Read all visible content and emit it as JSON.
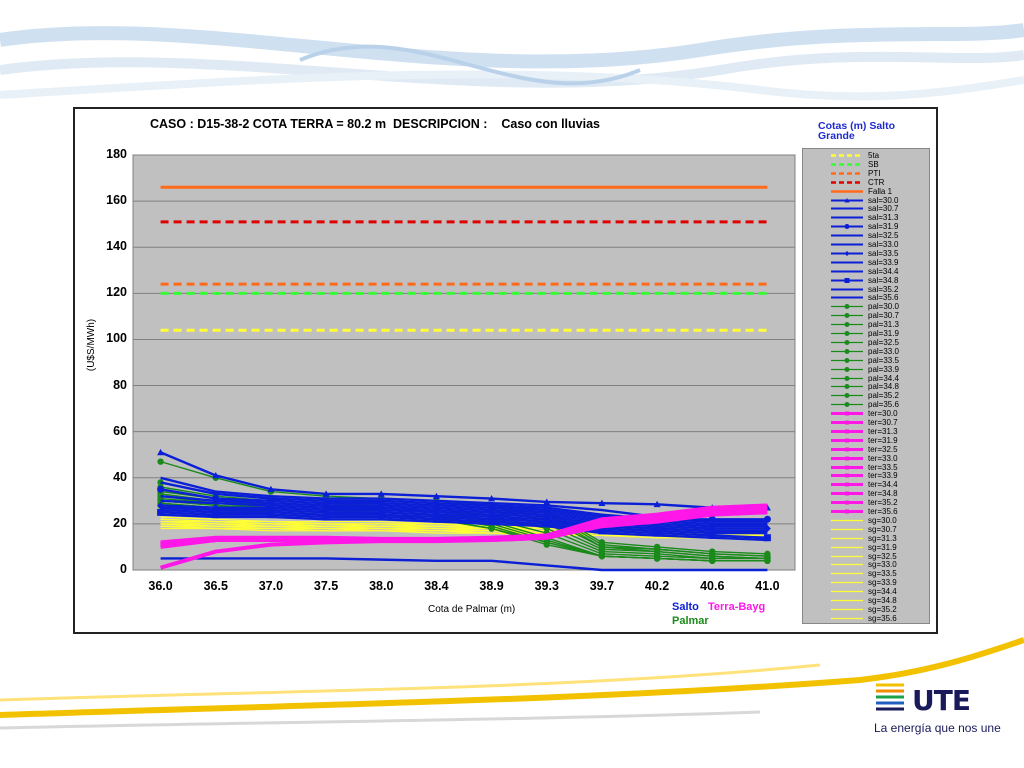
{
  "slide": {
    "logo_text": "UTE",
    "tagline": "La energía que nos une"
  },
  "chart_data": {
    "type": "line",
    "title": "CASO : D15-38-2 COTA TERRA = 80.2 m  DESCRIPCION :    Caso con lluvias",
    "xlabel": "Cota de Palmar (m)",
    "ylabel": "(U$S/MWh)",
    "ylim": [
      0,
      180
    ],
    "yticks": [
      "0",
      "20",
      "40",
      "60",
      "80",
      "100",
      "120",
      "140",
      "160",
      "180"
    ],
    "categories": [
      "36.0",
      "36.5",
      "37.0",
      "37.5",
      "38.0",
      "38.4",
      "38.9",
      "39.3",
      "39.7",
      "40.2",
      "40.6",
      "41.0"
    ],
    "grid": true,
    "legend_title": "Cotas (m) Salto Grande",
    "legend_placement": "right",
    "notes": {
      "salto": "Salto",
      "terra": "Terra-Bayg",
      "palmar": "Palmar"
    },
    "colors": {
      "salto": "#0b1fd6",
      "palmar": "#1a8a1a",
      "terra": "#ff17e8",
      "sg": "#ffff33",
      "plot_bg": "#c0c0c0"
    },
    "series": [
      {
        "name": "5ta",
        "group": "ref",
        "color": "#ffff33",
        "dash": true,
        "width": 3,
        "values": [
          104,
          104,
          104,
          104,
          104,
          104,
          104,
          104,
          104,
          104,
          104,
          104
        ]
      },
      {
        "name": "SB",
        "group": "ref",
        "color": "#33ff33",
        "dash": true,
        "width": 3,
        "values": [
          120,
          120,
          120,
          120,
          120,
          120,
          120,
          120,
          120,
          120,
          120,
          120
        ]
      },
      {
        "name": "PTI",
        "group": "ref",
        "color": "#ff6a1a",
        "dash": true,
        "width": 3,
        "values": [
          124,
          124,
          124,
          124,
          124,
          124,
          124,
          124,
          124,
          124,
          124,
          124
        ]
      },
      {
        "name": "CTR",
        "group": "ref",
        "color": "#e00000",
        "dash": true,
        "width": 3,
        "values": [
          151,
          151,
          151,
          151,
          151,
          151,
          151,
          151,
          151,
          151,
          151,
          151
        ]
      },
      {
        "name": "Falla 1",
        "group": "ref",
        "color": "#ff6a1a",
        "dash": false,
        "width": 3,
        "values": [
          166,
          166,
          166,
          166,
          166,
          166,
          166,
          166,
          166,
          166,
          166,
          166
        ]
      },
      {
        "name": "sal=30.0",
        "group": "salto",
        "marker": "triangle",
        "values": [
          51,
          41,
          35,
          33,
          33,
          32,
          31,
          29.5,
          29,
          28.5,
          27,
          27
        ]
      },
      {
        "name": "sal=30.7",
        "group": "salto",
        "marker": "",
        "values": [
          40,
          34,
          32,
          31,
          31,
          30,
          29,
          28,
          26,
          23,
          21,
          21
        ]
      },
      {
        "name": "sal=31.3",
        "group": "salto",
        "marker": "",
        "values": [
          38,
          33,
          31,
          30,
          30,
          29,
          28,
          27,
          24,
          22,
          21,
          21
        ]
      },
      {
        "name": "sal=31.9",
        "group": "salto",
        "marker": "circle",
        "values": [
          35,
          31,
          30,
          29,
          29,
          28,
          27,
          26,
          23,
          22,
          22,
          22
        ]
      },
      {
        "name": "sal=32.5",
        "group": "salto",
        "marker": "",
        "values": [
          32,
          30,
          29,
          28,
          28,
          27,
          26,
          25,
          22,
          21,
          20,
          20
        ]
      },
      {
        "name": "sal=33.0",
        "group": "salto",
        "marker": "",
        "values": [
          30,
          29,
          28,
          27,
          27,
          26,
          25,
          24,
          21,
          20,
          19,
          19
        ]
      },
      {
        "name": "sal=33.5",
        "group": "salto",
        "marker": "diamond",
        "values": [
          28,
          27,
          27,
          26,
          26,
          25,
          24,
          23,
          20,
          19,
          18,
          18
        ]
      },
      {
        "name": "sal=33.9",
        "group": "salto",
        "marker": "",
        "values": [
          27,
          26,
          26,
          25,
          25,
          24,
          23,
          22,
          19,
          18,
          17,
          17
        ]
      },
      {
        "name": "sal=34.4",
        "group": "salto",
        "marker": "",
        "values": [
          26,
          25,
          25,
          24,
          24,
          23,
          22,
          21,
          18,
          17,
          16,
          16
        ]
      },
      {
        "name": "sal=34.8",
        "group": "salto",
        "marker": "square",
        "values": [
          25,
          24,
          24,
          23,
          23,
          22,
          21,
          20,
          17,
          16,
          15,
          14
        ]
      },
      {
        "name": "sal=35.2",
        "group": "salto",
        "marker": "",
        "values": [
          24,
          23,
          23,
          22,
          22,
          21,
          20,
          19,
          16,
          15,
          14,
          13
        ]
      },
      {
        "name": "sal=35.6",
        "group": "salto",
        "marker": "",
        "values": [
          5,
          5,
          5,
          5,
          4.5,
          4,
          4,
          2,
          0,
          0,
          0,
          0
        ]
      },
      {
        "name": "pal=30.0",
        "group": "palmar",
        "values": [
          47,
          40,
          34,
          32,
          31,
          30,
          28,
          26,
          12,
          10,
          8,
          7
        ]
      },
      {
        "name": "pal=30.7",
        "group": "palmar",
        "values": [
          38,
          33,
          31,
          30,
          29,
          28,
          27,
          25,
          11,
          9,
          7,
          6
        ]
      },
      {
        "name": "pal=31.3",
        "group": "palmar",
        "values": [
          36,
          32,
          30,
          29,
          28,
          27,
          26,
          24,
          10,
          9,
          7,
          6
        ]
      },
      {
        "name": "pal=31.9",
        "group": "palmar",
        "values": [
          34,
          31,
          29,
          28,
          27,
          26,
          25,
          22,
          10,
          8,
          6,
          5
        ]
      },
      {
        "name": "pal=32.5",
        "group": "palmar",
        "values": [
          33,
          30,
          28,
          27,
          26,
          26,
          24,
          20,
          9,
          8,
          6,
          5
        ]
      },
      {
        "name": "pal=33.0",
        "group": "palmar",
        "values": [
          32,
          29,
          28,
          27,
          26,
          25,
          23,
          18,
          8,
          7,
          5,
          5
        ]
      },
      {
        "name": "pal=33.5",
        "group": "palmar",
        "values": [
          31,
          29,
          27,
          26,
          25,
          24,
          22,
          16,
          7,
          6,
          5,
          5
        ]
      },
      {
        "name": "pal=33.9",
        "group": "palmar",
        "values": [
          30,
          28,
          27,
          26,
          25,
          24,
          21,
          14,
          6,
          5,
          4,
          4
        ]
      },
      {
        "name": "pal=34.4",
        "group": "palmar",
        "values": [
          30,
          28,
          26,
          25,
          24,
          23,
          20,
          13,
          6,
          5,
          4,
          4
        ]
      },
      {
        "name": "pal=34.8",
        "group": "palmar",
        "values": [
          29,
          27,
          26,
          25,
          24,
          23,
          19,
          12,
          6,
          5,
          4,
          4
        ]
      },
      {
        "name": "pal=35.2",
        "group": "palmar",
        "values": [
          29,
          27,
          25,
          24,
          24,
          22,
          18,
          12,
          6,
          5,
          4,
          4
        ]
      },
      {
        "name": "pal=35.6",
        "group": "palmar",
        "values": [
          28,
          26,
          25,
          24,
          23,
          22,
          18,
          11,
          6,
          5,
          4,
          4
        ]
      },
      {
        "name": "ter=30.0",
        "group": "terra",
        "values": [
          12,
          14,
          14,
          14,
          13.5,
          13.5,
          14,
          15,
          22,
          24,
          27,
          28
        ]
      },
      {
        "name": "ter=30.7",
        "group": "terra",
        "values": [
          11,
          13,
          13.5,
          13.5,
          13,
          13,
          13.5,
          14.5,
          21,
          23,
          26,
          27
        ]
      },
      {
        "name": "ter=31.3",
        "group": "terra",
        "values": [
          10,
          13,
          13,
          13,
          13,
          13,
          13,
          14,
          20,
          22,
          25,
          26
        ]
      },
      {
        "name": "ter=31.9",
        "group": "terra",
        "values": [
          1,
          8,
          11,
          12,
          12.5,
          12.5,
          13,
          14,
          19,
          21,
          24,
          25
        ]
      },
      {
        "name": "ter=32.5",
        "group": "terra",
        "values": [
          11,
          13,
          13,
          13,
          13,
          13,
          13.5,
          14.5,
          21,
          23,
          26,
          27
        ]
      },
      {
        "name": "ter=33.0",
        "group": "terra",
        "values": [
          11,
          13,
          13,
          13,
          13,
          13,
          13.5,
          14.5,
          21,
          23,
          26,
          27
        ]
      },
      {
        "name": "ter=33.5",
        "group": "terra",
        "values": [
          11,
          13,
          13,
          13,
          13,
          13,
          13.5,
          14.5,
          21,
          23,
          26,
          27
        ]
      },
      {
        "name": "ter=33.9",
        "group": "terra",
        "values": [
          11,
          13,
          13,
          13,
          13,
          13,
          13.5,
          14.5,
          21,
          23,
          26,
          27
        ]
      },
      {
        "name": "ter=34.4",
        "group": "terra",
        "values": [
          11,
          13,
          13,
          13,
          13,
          13,
          13.5,
          14.5,
          21,
          23,
          26,
          27
        ]
      },
      {
        "name": "ter=34.8",
        "group": "terra",
        "values": [
          11,
          13,
          13,
          13,
          13,
          13,
          13.5,
          14.5,
          21,
          23,
          26,
          27
        ]
      },
      {
        "name": "ter=35.2",
        "group": "terra",
        "values": [
          11,
          13,
          13,
          13,
          13,
          13,
          13.5,
          14.5,
          21,
          23,
          26,
          27
        ]
      },
      {
        "name": "ter=35.6",
        "group": "terra",
        "values": [
          11,
          13,
          13,
          13,
          13,
          13,
          13.5,
          14.5,
          21,
          23,
          26,
          27
        ]
      },
      {
        "name": "sg=30.0",
        "group": "sg",
        "values": [
          23,
          22,
          21,
          21,
          21,
          20,
          20,
          19,
          19,
          18,
          18,
          18
        ]
      },
      {
        "name": "sg=30.7",
        "group": "sg",
        "values": [
          22,
          21,
          21,
          20,
          20,
          20,
          19,
          19,
          18,
          18,
          17,
          17
        ]
      },
      {
        "name": "sg=31.3",
        "group": "sg",
        "values": [
          22,
          21,
          20,
          20,
          20,
          19,
          19,
          18,
          18,
          17,
          17,
          17
        ]
      },
      {
        "name": "sg=31.9",
        "group": "sg",
        "values": [
          21,
          21,
          20,
          20,
          19,
          19,
          19,
          18,
          17,
          17,
          16,
          16
        ]
      },
      {
        "name": "sg=32.5",
        "group": "sg",
        "values": [
          21,
          20,
          20,
          19,
          19,
          19,
          18,
          18,
          17,
          16,
          16,
          16
        ]
      },
      {
        "name": "sg=33.0",
        "group": "sg",
        "values": [
          20,
          20,
          19,
          19,
          19,
          18,
          18,
          17,
          17,
          16,
          16,
          15
        ]
      },
      {
        "name": "sg=33.5",
        "group": "sg",
        "values": [
          20,
          19,
          19,
          19,
          18,
          18,
          18,
          17,
          16,
          16,
          15,
          15
        ]
      },
      {
        "name": "sg=33.9",
        "group": "sg",
        "values": [
          20,
          19,
          19,
          18,
          18,
          18,
          17,
          17,
          16,
          15,
          15,
          15
        ]
      },
      {
        "name": "sg=34.4",
        "group": "sg",
        "values": [
          19,
          19,
          18,
          18,
          18,
          17,
          17,
          16,
          16,
          15,
          15,
          14
        ]
      },
      {
        "name": "sg=34.8",
        "group": "sg",
        "values": [
          19,
          18,
          18,
          18,
          17,
          17,
          17,
          16,
          15,
          15,
          14,
          14
        ]
      },
      {
        "name": "sg=35.2",
        "group": "sg",
        "values": [
          19,
          18,
          18,
          17,
          17,
          17,
          16,
          16,
          15,
          14,
          14,
          14
        ]
      },
      {
        "name": "sg=35.6",
        "group": "sg",
        "values": [
          18,
          18,
          17,
          17,
          17,
          16,
          16,
          15,
          15,
          14,
          14,
          13
        ]
      }
    ]
  }
}
